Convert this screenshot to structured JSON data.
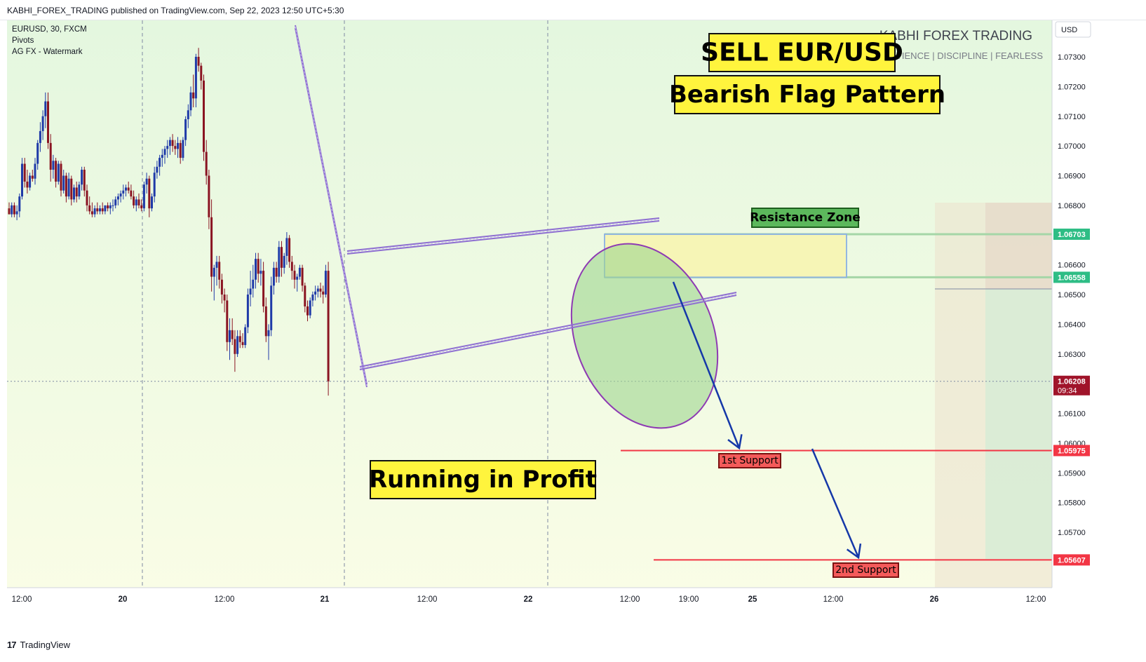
{
  "header": {
    "published_line": "KABHI_FOREX_TRADING published on TradingView.com, Sep 22, 2023 12:50 UTC+5:30"
  },
  "chart_data": {
    "type": "candlestick",
    "symbol_line": "EURUSD, 30, FXCM",
    "indicators": [
      "Pivots",
      "AG FX - Watermark"
    ],
    "currency": "USD",
    "watermark": {
      "title": "KABHI FOREX TRADING",
      "subtitle": "PATIENCE  |  DISCIPLINE  |  FEARLESS"
    },
    "y_ticks": [
      1.073,
      1.072,
      1.071,
      1.07,
      1.069,
      1.068,
      1.066,
      1.065,
      1.064,
      1.063,
      1.061,
      1.06,
      1.059,
      1.058,
      1.057
    ],
    "y_tick_labels": [
      "1.07300",
      "1.07200",
      "1.07100",
      "1.07000",
      "1.06900",
      "1.06800",
      "1.06600",
      "1.06500",
      "1.06400",
      "1.06300",
      "1.06100",
      "1.06000",
      "1.05900",
      "1.05800",
      "1.05700"
    ],
    "ylim": [
      1.0555,
      1.0747
    ],
    "x_labels": [
      "12:00",
      "20",
      "12:00",
      "21",
      "12:00",
      "22",
      "12:00",
      "19:00",
      "25",
      "12:00",
      "26",
      "12:00"
    ],
    "price_labels": [
      {
        "value": 1.06703,
        "text": "1.06703",
        "color": "#2ebd85"
      },
      {
        "value": 1.06558,
        "text": "1.06558",
        "color": "#2ebd85"
      },
      {
        "value": 1.06208,
        "text": "1.06208",
        "sub": "09:34",
        "color": "#a0142a"
      },
      {
        "value": 1.05975,
        "text": "1.05975",
        "color": "#f23645"
      },
      {
        "value": 1.05607,
        "text": "1.05607",
        "color": "#f23645"
      }
    ],
    "annotations": {
      "sell": "SELL EUR/USD",
      "pattern": "Bearish Flag Pattern",
      "resistance": "Resistance Zone",
      "support1": "1st Support",
      "support2": "2nd Support",
      "status": "Running in Profit"
    },
    "resistance_zone": [
      1.06558,
      1.06703
    ],
    "supports": [
      1.05975,
      1.05607
    ],
    "current_price": 1.06208,
    "candles": [
      [
        1.0679,
        1.0681,
        1.0677,
        1.0677
      ],
      [
        1.0677,
        1.0681,
        1.0676,
        1.068
      ],
      [
        1.068,
        1.0681,
        1.0676,
        1.0677
      ],
      [
        1.0677,
        1.068,
        1.0675,
        1.0678
      ],
      [
        1.0678,
        1.0684,
        1.0676,
        1.0683
      ],
      [
        1.0683,
        1.0696,
        1.0682,
        1.0694
      ],
      [
        1.0694,
        1.0696,
        1.0686,
        1.0688
      ],
      [
        1.0688,
        1.0692,
        1.0684,
        1.0686
      ],
      [
        1.0686,
        1.0691,
        1.0685,
        1.069
      ],
      [
        1.069,
        1.0692,
        1.0688,
        1.0689
      ],
      [
        1.0689,
        1.0696,
        1.0687,
        1.0694
      ],
      [
        1.0694,
        1.0702,
        1.0692,
        1.0701
      ],
      [
        1.0701,
        1.0708,
        1.0698,
        1.0705
      ],
      [
        1.0705,
        1.0712,
        1.0702,
        1.071
      ],
      [
        1.071,
        1.0718,
        1.0706,
        1.0715
      ],
      [
        1.0715,
        1.0718,
        1.0699,
        1.0701
      ],
      [
        1.0701,
        1.0704,
        1.0688,
        1.0692
      ],
      [
        1.0692,
        1.0697,
        1.0689,
        1.0695
      ],
      [
        1.0695,
        1.0696,
        1.0686,
        1.0688
      ],
      [
        1.0688,
        1.0695,
        1.0687,
        1.0694
      ],
      [
        1.0694,
        1.0695,
        1.0683,
        1.0685
      ],
      [
        1.0685,
        1.0692,
        1.0684,
        1.069
      ],
      [
        1.069,
        1.0691,
        1.0681,
        1.0683
      ],
      [
        1.0683,
        1.0691,
        1.0682,
        1.0689
      ],
      [
        1.0689,
        1.069,
        1.068,
        1.0682
      ],
      [
        1.0682,
        1.0687,
        1.0681,
        1.0686
      ],
      [
        1.0686,
        1.0688,
        1.0681,
        1.0683
      ],
      [
        1.0683,
        1.0688,
        1.0682,
        1.0687
      ],
      [
        1.0687,
        1.0693,
        1.0685,
        1.0692
      ],
      [
        1.0692,
        1.0693,
        1.0683,
        1.0685
      ],
      [
        1.0685,
        1.0687,
        1.0678,
        1.068
      ],
      [
        1.068,
        1.0683,
        1.0677,
        1.0678
      ],
      [
        1.0678,
        1.0681,
        1.0676,
        1.0677
      ],
      [
        1.0677,
        1.068,
        1.0676,
        1.0679
      ],
      [
        1.0679,
        1.0681,
        1.0677,
        1.0678
      ],
      [
        1.0678,
        1.068,
        1.0677,
        1.0679
      ],
      [
        1.0679,
        1.0681,
        1.0677,
        1.0678
      ],
      [
        1.0678,
        1.068,
        1.0677,
        1.068
      ],
      [
        1.068,
        1.0681,
        1.0678,
        1.0679
      ],
      [
        1.0679,
        1.0681,
        1.0677,
        1.068
      ],
      [
        1.068,
        1.0682,
        1.0678,
        1.068
      ],
      [
        1.068,
        1.0683,
        1.0679,
        1.0682
      ],
      [
        1.0682,
        1.0684,
        1.068,
        1.0683
      ],
      [
        1.0683,
        1.0685,
        1.0681,
        1.0684
      ],
      [
        1.0684,
        1.0687,
        1.0682,
        1.0685
      ],
      [
        1.0685,
        1.0687,
        1.0683,
        1.0686
      ],
      [
        1.0686,
        1.0688,
        1.0684,
        1.0685
      ],
      [
        1.0685,
        1.0687,
        1.0682,
        1.0683
      ],
      [
        1.0683,
        1.0685,
        1.0679,
        1.068
      ],
      [
        1.068,
        1.0683,
        1.0678,
        1.0682
      ],
      [
        1.0682,
        1.0684,
        1.0679,
        1.068
      ],
      [
        1.068,
        1.0682,
        1.0678,
        1.0679
      ],
      [
        1.0679,
        1.0688,
        1.0678,
        1.0687
      ],
      [
        1.0687,
        1.0691,
        1.0684,
        1.0689
      ],
      [
        1.0689,
        1.069,
        1.0676,
        1.0679
      ],
      [
        1.0679,
        1.0684,
        1.0678,
        1.0683
      ],
      [
        1.0683,
        1.0693,
        1.0681,
        1.0691
      ],
      [
        1.0691,
        1.0695,
        1.0689,
        1.0693
      ],
      [
        1.0693,
        1.0697,
        1.069,
        1.0696
      ],
      [
        1.0696,
        1.0699,
        1.0693,
        1.0697
      ],
      [
        1.0697,
        1.07,
        1.0694,
        1.0699
      ],
      [
        1.0699,
        1.0702,
        1.0696,
        1.07
      ],
      [
        1.07,
        1.0703,
        1.0697,
        1.0702
      ],
      [
        1.0702,
        1.0704,
        1.0698,
        1.07
      ],
      [
        1.07,
        1.0702,
        1.0697,
        1.0699
      ],
      [
        1.0699,
        1.0703,
        1.0696,
        1.0701
      ],
      [
        1.0701,
        1.0702,
        1.0694,
        1.0696
      ],
      [
        1.0696,
        1.0703,
        1.0695,
        1.0702
      ],
      [
        1.0702,
        1.071,
        1.07,
        1.0709
      ],
      [
        1.0709,
        1.0714,
        1.0706,
        1.0712
      ],
      [
        1.0712,
        1.072,
        1.071,
        1.0718
      ],
      [
        1.0718,
        1.0724,
        1.0713,
        1.0716
      ],
      [
        1.0716,
        1.0731,
        1.0713,
        1.073
      ],
      [
        1.073,
        1.0733,
        1.0725,
        1.0727
      ],
      [
        1.0727,
        1.0728,
        1.0719,
        1.0722
      ],
      [
        1.0722,
        1.0724,
        1.0695,
        1.0698
      ],
      [
        1.0698,
        1.0702,
        1.0687,
        1.069
      ],
      [
        1.069,
        1.0692,
        1.0672,
        1.0676
      ],
      [
        1.0676,
        1.0682,
        1.0651,
        1.0656
      ],
      [
        1.0656,
        1.066,
        1.0648,
        1.0659
      ],
      [
        1.0659,
        1.0663,
        1.0653,
        1.0661
      ],
      [
        1.0661,
        1.0663,
        1.0652,
        1.0655
      ],
      [
        1.0655,
        1.0657,
        1.0647,
        1.065
      ],
      [
        1.065,
        1.0652,
        1.0644,
        1.0648
      ],
      [
        1.0648,
        1.065,
        1.0631,
        1.0634
      ],
      [
        1.0634,
        1.0642,
        1.0628,
        1.0638
      ],
      [
        1.0638,
        1.0642,
        1.0633,
        1.0635
      ],
      [
        1.0635,
        1.0638,
        1.0624,
        1.063
      ],
      [
        1.063,
        1.0638,
        1.0629,
        1.0636
      ],
      [
        1.0636,
        1.0638,
        1.0632,
        1.0634
      ],
      [
        1.0634,
        1.0637,
        1.0632,
        1.0633
      ],
      [
        1.0633,
        1.064,
        1.0632,
        1.0639
      ],
      [
        1.0639,
        1.0652,
        1.0637,
        1.065
      ],
      [
        1.065,
        1.0658,
        1.0646,
        1.0652
      ],
      [
        1.0652,
        1.066,
        1.0649,
        1.0655
      ],
      [
        1.0655,
        1.0664,
        1.0652,
        1.0662
      ],
      [
        1.0662,
        1.0664,
        1.0654,
        1.0657
      ],
      [
        1.0657,
        1.0662,
        1.0653,
        1.0658
      ],
      [
        1.0658,
        1.0661,
        1.0644,
        1.0646
      ],
      [
        1.0646,
        1.0649,
        1.0634,
        1.0636
      ],
      [
        1.0636,
        1.064,
        1.0628,
        1.0638
      ],
      [
        1.0638,
        1.0656,
        1.0636,
        1.0653
      ],
      [
        1.0653,
        1.0661,
        1.065,
        1.0659
      ],
      [
        1.0659,
        1.0661,
        1.0654,
        1.0656
      ],
      [
        1.0656,
        1.0668,
        1.0654,
        1.0666
      ],
      [
        1.0666,
        1.0668,
        1.0656,
        1.0659
      ],
      [
        1.0659,
        1.0664,
        1.0657,
        1.0663
      ],
      [
        1.0663,
        1.0671,
        1.066,
        1.0669
      ],
      [
        1.0669,
        1.067,
        1.0659,
        1.0661
      ],
      [
        1.0661,
        1.0663,
        1.0655,
        1.0658
      ],
      [
        1.0658,
        1.066,
        1.0652,
        1.0655
      ],
      [
        1.0655,
        1.0657,
        1.0651,
        1.0656
      ],
      [
        1.0656,
        1.066,
        1.0655,
        1.0659
      ],
      [
        1.0659,
        1.066,
        1.0651,
        1.0653
      ],
      [
        1.0653,
        1.0654,
        1.0644,
        1.0646
      ],
      [
        1.0646,
        1.0648,
        1.0641,
        1.0643
      ],
      [
        1.0643,
        1.0649,
        1.0642,
        1.0648
      ],
      [
        1.0648,
        1.0651,
        1.0646,
        1.065
      ],
      [
        1.065,
        1.0653,
        1.0648,
        1.0651
      ],
      [
        1.0651,
        1.0653,
        1.0649,
        1.0652
      ],
      [
        1.0652,
        1.0654,
        1.0649,
        1.0651
      ],
      [
        1.0651,
        1.0653,
        1.0647,
        1.065
      ],
      [
        1.065,
        1.066,
        1.0649,
        1.0658
      ],
      [
        1.0658,
        1.0661,
        1.0616,
        1.06208
      ]
    ]
  }
}
